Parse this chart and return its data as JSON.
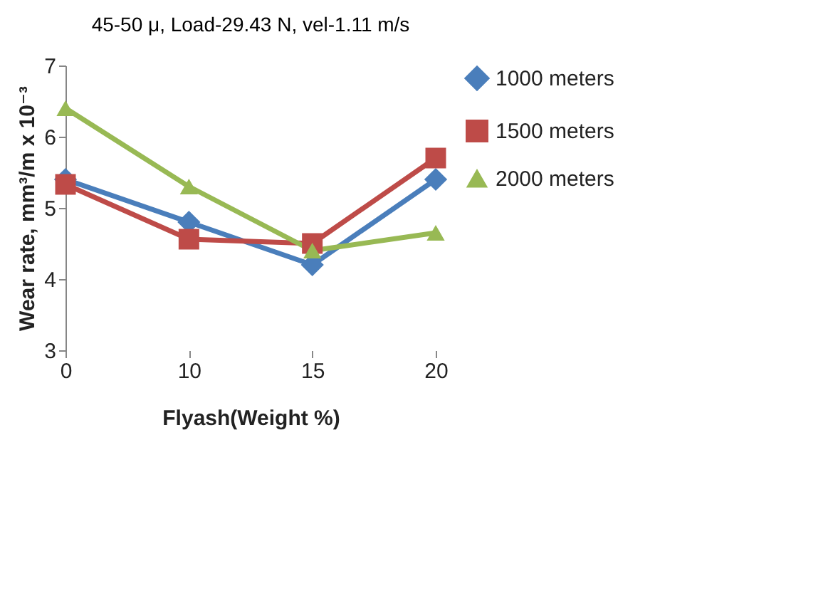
{
  "chart_data": {
    "type": "line",
    "title": "45-50 μ, Load-29.43 N, vel-1.11 m/s",
    "xlabel": "Flyash(Weight %)",
    "ylabel": "Wear rate, mm³/m x 10⁻³",
    "categories": [
      "0",
      "10",
      "15",
      "20"
    ],
    "series": [
      {
        "name": "1000 meters",
        "color": "#4a7ebb",
        "marker": "diamond",
        "values": [
          5.4,
          4.8,
          4.2,
          5.4
        ]
      },
      {
        "name": "1500 meters",
        "color": "#be4b48",
        "marker": "square",
        "values": [
          5.33,
          4.56,
          4.5,
          5.7
        ]
      },
      {
        "name": "2000 meters",
        "color": "#98b954",
        "marker": "triangle",
        "values": [
          6.4,
          5.3,
          4.4,
          4.65
        ]
      }
    ],
    "ylim": [
      3,
      7
    ],
    "yticks": [
      3,
      4,
      5,
      6,
      7
    ],
    "grid": false,
    "legend": "right",
    "line_style": "solid"
  }
}
